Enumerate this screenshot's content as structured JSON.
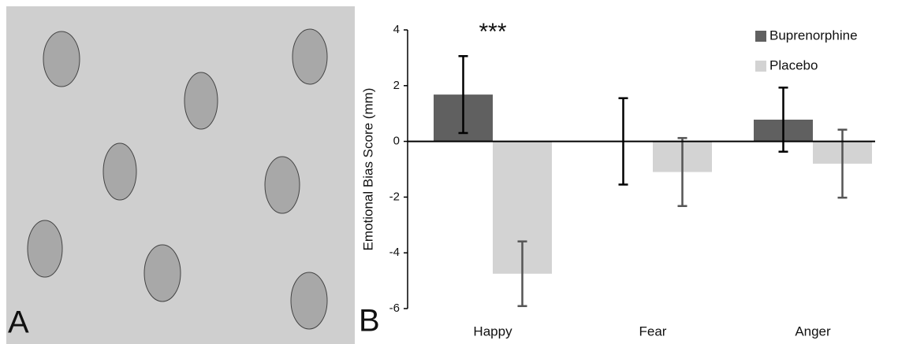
{
  "panel_labels": [
    "A",
    "B"
  ],
  "chart_data": {
    "type": "bar",
    "y_label": "Emotional Bias Score (mm)",
    "annotation": "***",
    "categories": [
      "Happy",
      "Fear",
      "Anger"
    ],
    "series": [
      {
        "name": "Buprenorphine",
        "color": "#606060",
        "error_color": "#000000",
        "values": [
          1.68,
          0,
          0.78
        ],
        "errors": [
          1.38,
          1.55,
          1.15
        ]
      },
      {
        "name": "Placebo",
        "color": "#d3d3d3",
        "error_color": "#555555",
        "values": [
          -4.75,
          -1.1,
          -0.8
        ],
        "errors": [
          1.16,
          1.22,
          1.22
        ]
      }
    ],
    "ylim": [
      -6,
      4
    ],
    "yticks": [
      -6,
      -4,
      -2,
      0,
      2,
      4
    ],
    "legend": "top-right"
  }
}
